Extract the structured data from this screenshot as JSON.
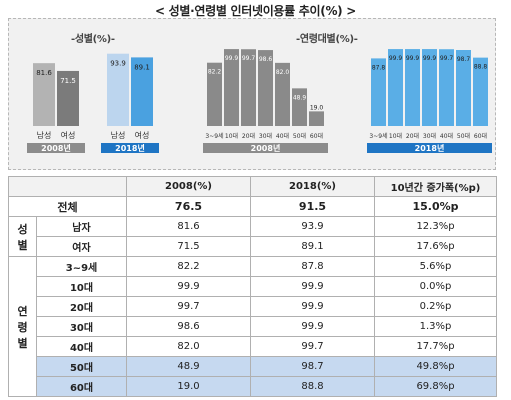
{
  "title": "< 성별·연령별 인터넷이용률 추이(%) >",
  "chart_data": [
    {
      "type": "bar",
      "title": "-성별(%)-",
      "categories": [
        "남성",
        "여성",
        "남성",
        "여성"
      ],
      "groups": [
        {
          "label": "2008년",
          "categories": [
            "남성",
            "여성"
          ],
          "values": [
            81.6,
            71.5
          ]
        },
        {
          "label": "2018년",
          "categories": [
            "남성",
            "여성"
          ],
          "values": [
            93.9,
            89.1
          ]
        }
      ],
      "ylim": [
        0,
        100
      ],
      "grid": false,
      "colors": {
        "2008": [
          "#b3b3b3",
          "#7b7b7b"
        ],
        "2018": [
          "#bcd5ee",
          "#4aa1e0"
        ]
      }
    },
    {
      "type": "bar",
      "title": "-연령대별(%)-",
      "groups": [
        {
          "label": "2008년",
          "categories": [
            "3~9세",
            "10대",
            "20대",
            "30대",
            "40대",
            "50대",
            "60대"
          ],
          "values": [
            82.2,
            99.9,
            99.7,
            98.6,
            82.0,
            48.9,
            19.0
          ]
        },
        {
          "label": "2018년",
          "categories": [
            "3~9세",
            "10대",
            "20대",
            "30대",
            "40대",
            "50대",
            "60대"
          ],
          "values": [
            87.8,
            99.9,
            99.9,
            99.9,
            99.7,
            98.7,
            88.8
          ]
        }
      ],
      "ylim": [
        0,
        100
      ],
      "grid": false,
      "colors": {
        "2008": "#8a8a8a",
        "2018": "#5aaee6"
      }
    }
  ],
  "label_colors": {
    "2008": "#8c8c8c",
    "2018": "#1f75c4"
  },
  "table": {
    "headers": [
      "",
      "2008(%)",
      "2018(%)",
      "10년간 증가폭(%p)"
    ],
    "total": {
      "label": "전체",
      "v2008": "76.5",
      "v2018": "91.5",
      "diff": "15.0%p"
    },
    "sex_group": "성별",
    "sex_rows": [
      {
        "label": "남자",
        "v2008": "81.6",
        "v2018": "93.9",
        "diff": "12.3%p"
      },
      {
        "label": "여자",
        "v2008": "71.5",
        "v2018": "89.1",
        "diff": "17.6%p"
      }
    ],
    "age_group": "연령\n별",
    "age_rows": [
      {
        "label": "3~9세",
        "v2008": "82.2",
        "v2018": "87.8",
        "diff": "5.6%p",
        "hl": false
      },
      {
        "label": "10대",
        "v2008": "99.9",
        "v2018": "99.9",
        "diff": "0.0%p",
        "hl": false
      },
      {
        "label": "20대",
        "v2008": "99.7",
        "v2018": "99.9",
        "diff": "0.2%p",
        "hl": false
      },
      {
        "label": "30대",
        "v2008": "98.6",
        "v2018": "99.9",
        "diff": "1.3%p",
        "hl": false
      },
      {
        "label": "40대",
        "v2008": "82.0",
        "v2018": "99.7",
        "diff": "17.7%p",
        "hl": false
      },
      {
        "label": "50대",
        "v2008": "48.9",
        "v2018": "98.7",
        "diff": "49.8%p",
        "hl": true
      },
      {
        "label": "60대",
        "v2008": "19.0",
        "v2018": "88.8",
        "diff": "69.8%p",
        "hl": true
      }
    ]
  }
}
